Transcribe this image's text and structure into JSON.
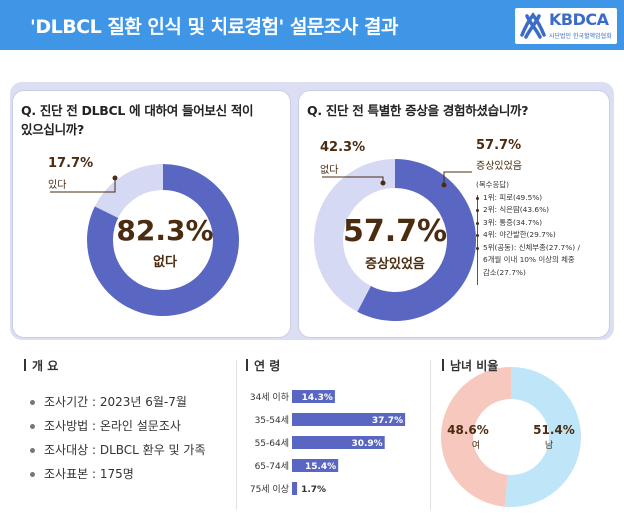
{
  "header": {
    "title": "'DLBCL 질환 인식 및 치료경험' 설문조사 결과",
    "logo_text": "KBDCA",
    "logo_sub": "사단법인 한국혈액암협회"
  },
  "colors": {
    "header_blue": "#3f96e6",
    "donut_dark": "#5a67c2",
    "donut_light": "#d5d9f3",
    "bar_fill": "#5a67c2",
    "female": "#f7c8be",
    "male": "#bfe6f8",
    "text_brown": "#4b2c10"
  },
  "q1": {
    "question_line1": "Q. 진단 전 DLBCL 에 대하여 들어보신 적이",
    "question_line2": "있으십니까?",
    "center_pct": "82.3%",
    "center_label": "없다",
    "callout_pct": "17.7%",
    "callout_label": "있다"
  },
  "q2": {
    "question": "Q. 진단 전 특별한 증상을 경험하셨습니까?",
    "center_pct": "57.7%",
    "center_label": "증상있었음",
    "left_pct": "42.3%",
    "left_label": "없다",
    "right_pct": "57.7%",
    "right_label": "증상있었음",
    "list_header": "(복수응답)",
    "list": [
      "1위: 피로(49.5%)",
      "2위: 식은땀(43.6%)",
      "3위: 통증(34.7%)",
      "4위: 야간발한(29.7%)",
      "5위(공동): 신체부종(27.7%) /",
      "6개월 이내 10% 이상의 체중",
      "감소(27.7%)"
    ]
  },
  "overview": {
    "title": "개 요",
    "items": [
      "조사기간 : 2023년 6월-7월",
      "조사방법 : 온라인 설문조사",
      "조사대상 : DLBCL 환우 및 가족",
      "조사표본 : 175명"
    ]
  },
  "age": {
    "title": "연 령"
  },
  "gender": {
    "title": "남녀 비율"
  },
  "chart_data": [
    {
      "type": "pie",
      "title": "Q. 진단 전 DLBCL 에 대하여 들어보신 적이 있으십니까?",
      "categories": [
        "없다",
        "있다"
      ],
      "values": [
        82.3,
        17.7
      ]
    },
    {
      "type": "pie",
      "title": "Q. 진단 전 특별한 증상을 경험하셨습니까?",
      "categories": [
        "증상있었음",
        "없다"
      ],
      "values": [
        57.7,
        42.3
      ]
    },
    {
      "type": "bar",
      "title": "연 령",
      "categories": [
        "34세 이하",
        "35-54세",
        "55-64세",
        "65-74세",
        "75세 이상"
      ],
      "values": [
        14.3,
        37.7,
        30.9,
        15.4,
        1.7
      ],
      "value_labels": [
        "14.3%",
        "37.7%",
        "30.9%",
        "15.4%",
        "1.7%"
      ]
    },
    {
      "type": "pie",
      "title": "남녀 비율",
      "categories": [
        "여",
        "남"
      ],
      "values": [
        48.6,
        51.4
      ],
      "value_labels": [
        "48.6%",
        "51.4%"
      ]
    }
  ]
}
